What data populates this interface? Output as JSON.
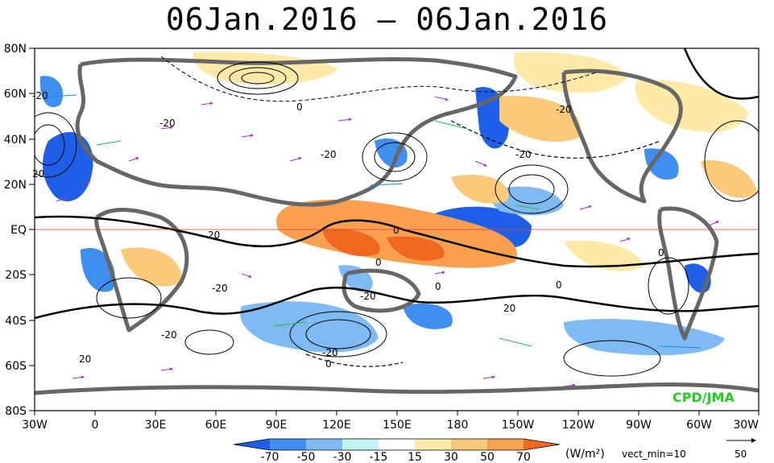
{
  "title": "06Jan.2016 – 06Jan.2016",
  "lat_labels": [
    "80N",
    "60N",
    "40N",
    "20N",
    "EQ",
    "20S",
    "40S",
    "60S",
    "80S"
  ],
  "lon_labels": [
    "30W",
    "0",
    "30E",
    "60E",
    "90E",
    "120E",
    "150E",
    "180",
    "150W",
    "120W",
    "90W",
    "60W",
    "30W"
  ],
  "colorbar": {
    "ticks": [
      "-70",
      "-50",
      "-30",
      "-15",
      "15",
      "30",
      "50",
      "70"
    ],
    "colors": [
      "#1f5ee6",
      "#3f8ef0",
      "#7fbaf4",
      "#c5f2f4",
      "#ffffff",
      "#fde9a8",
      "#fcc97a",
      "#f8a050",
      "#f06820"
    ],
    "unit": "(W/m²)",
    "vect_min": "vect_min=10",
    "ref_vector": "50"
  },
  "credit": "CPD/JMA",
  "contour_labels": [
    "0",
    "-20",
    "20",
    "-20",
    "-20",
    "0",
    "0",
    "-20",
    "0",
    "-20",
    "20",
    "0",
    "-20",
    "-20",
    "-20",
    "0",
    "20",
    "-20",
    "20",
    "0"
  ]
}
